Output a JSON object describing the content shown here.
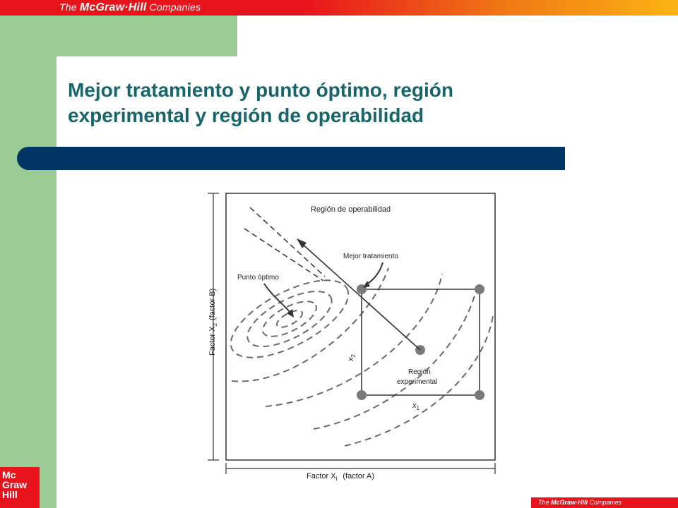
{
  "header": {
    "brand_prefix": "The ",
    "brand_name": "McGraw·Hill",
    "brand_suffix": " Companies"
  },
  "title": {
    "line1": "Mejor tratamiento y punto óptimo, región",
    "line2": "experimental y región de operabilidad"
  },
  "logo": {
    "line1": "Mc",
    "line2": "Graw",
    "line3": "Hill"
  },
  "footer": {
    "brand_prefix": "The ",
    "brand_name": "McGraw·Hill",
    "brand_suffix": " Companies"
  },
  "diagram": {
    "region_operabilidad": "Región de operabilidad",
    "mejor_tratamiento": "Mejor tratamiento",
    "punto_optimo": "Punto óptimo",
    "region_experimental_1": "Región",
    "region_experimental_2": "experimental",
    "axis_x": "Factor X",
    "axis_x_sub": "i",
    "axis_x_rest": "(factor A)",
    "axis_y": "Factor X",
    "axis_y_sub": "2",
    "axis_y_rest": "(factor B)",
    "code_x": "x",
    "code_x_sub": "1",
    "code_y": "x",
    "code_y_sub": "2",
    "colors": {
      "grid_point": "#7a7a7a",
      "line": "#333333"
    }
  }
}
